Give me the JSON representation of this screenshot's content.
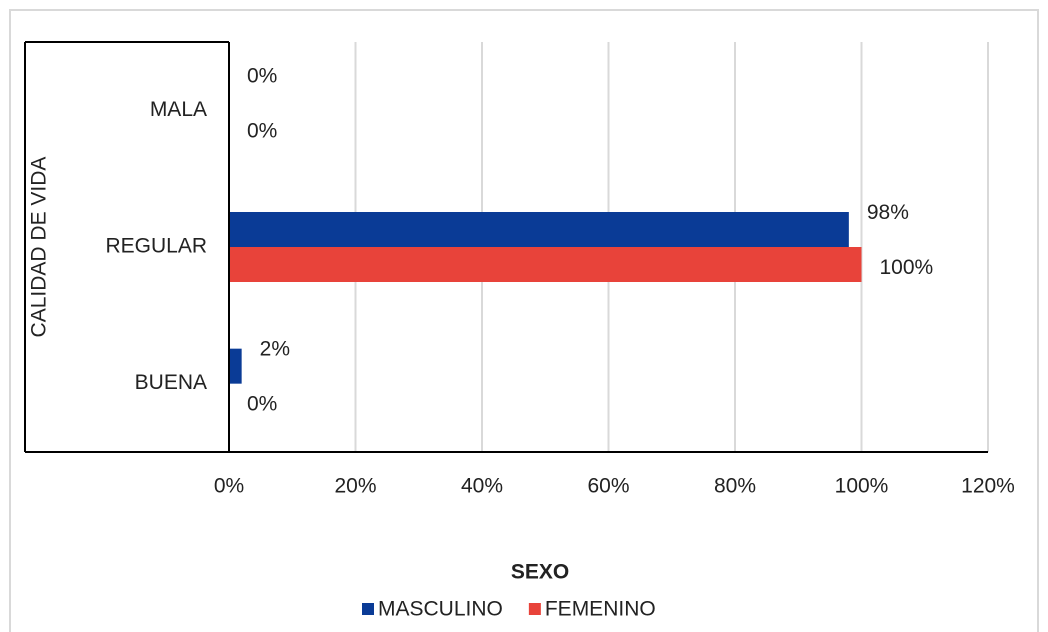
{
  "chart_data": {
    "type": "hbar",
    "categories": [
      "MALA",
      "REGULAR",
      "BUENA"
    ],
    "series": [
      {
        "name": "MASCULINO",
        "color": "#0a3b96",
        "values": [
          0,
          98,
          2
        ],
        "value_labels": [
          "0%",
          "98%",
          "2%"
        ]
      },
      {
        "name": "FEMENINO",
        "color": "#e8433a",
        "values": [
          0,
          100,
          0
        ],
        "value_labels": [
          "0%",
          "100%",
          "0%"
        ]
      }
    ],
    "xlabel": "SEXO",
    "ylabel": "CALIDAD DE VIDA",
    "xlim": [
      0,
      120
    ],
    "xticks": [
      {
        "value": 0,
        "label": "0%"
      },
      {
        "value": 20,
        "label": "20%"
      },
      {
        "value": 40,
        "label": "40%"
      },
      {
        "value": 60,
        "label": "60%"
      },
      {
        "value": 80,
        "label": "80%"
      },
      {
        "value": 100,
        "label": "100%"
      },
      {
        "value": 120,
        "label": "120%"
      }
    ],
    "grid": true,
    "legend": "bottom"
  }
}
